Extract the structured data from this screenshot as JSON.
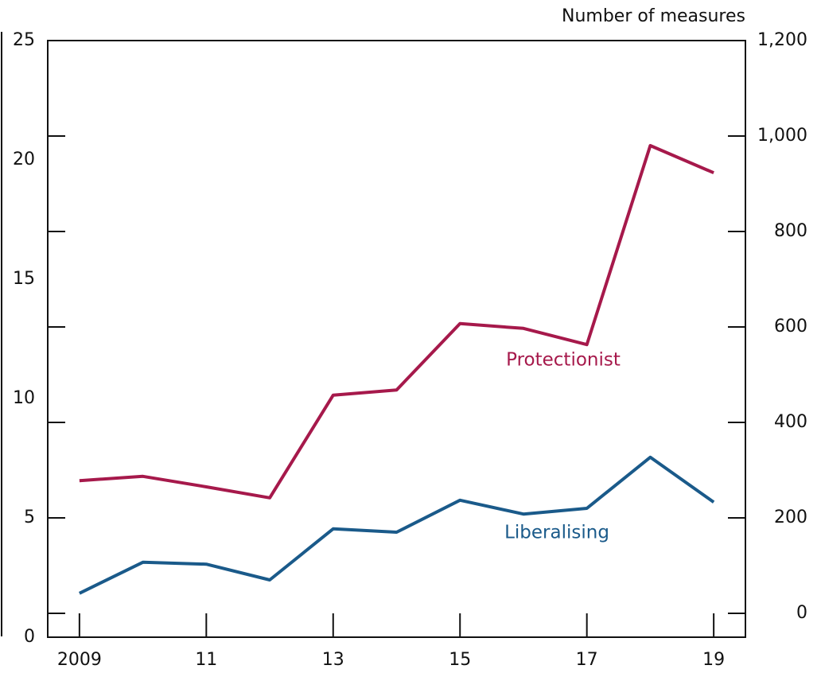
{
  "chart_data": {
    "type": "line",
    "y2_label": "Number of measures",
    "x": [
      2009,
      2010,
      2011,
      2012,
      2013,
      2014,
      2015,
      2016,
      2017,
      2018,
      2019
    ],
    "xlim": [
      2008.5,
      2019.5
    ],
    "xticks": [
      {
        "value": 2009,
        "label": "2009"
      },
      {
        "value": 2011,
        "label": "11"
      },
      {
        "value": 2013,
        "label": "13"
      },
      {
        "value": 2015,
        "label": "15"
      },
      {
        "value": 2017,
        "label": "17"
      },
      {
        "value": 2019,
        "label": "19"
      }
    ],
    "ylim": [
      0,
      25
    ],
    "yticks": [
      0,
      5,
      10,
      15,
      20,
      25
    ],
    "y2lim": [
      -50,
      1200
    ],
    "y2ticks": [
      0,
      200,
      400,
      600,
      800,
      {
        "value": 1000,
        "label": "1,000"
      },
      {
        "value": 1200,
        "label": "1,200"
      }
    ],
    "series": [
      {
        "name": "Protectionist",
        "color": "#a6194b",
        "axis": "y2",
        "values": [
          278,
          287,
          265,
          242,
          457,
          468,
          607,
          597,
          563,
          980,
          923
        ]
      },
      {
        "name": "Liberalising",
        "color": "#1a5a8a",
        "axis": "y2",
        "values": [
          42,
          107,
          103,
          70,
          177,
          170,
          237,
          208,
          220,
          327,
          233
        ]
      }
    ]
  }
}
